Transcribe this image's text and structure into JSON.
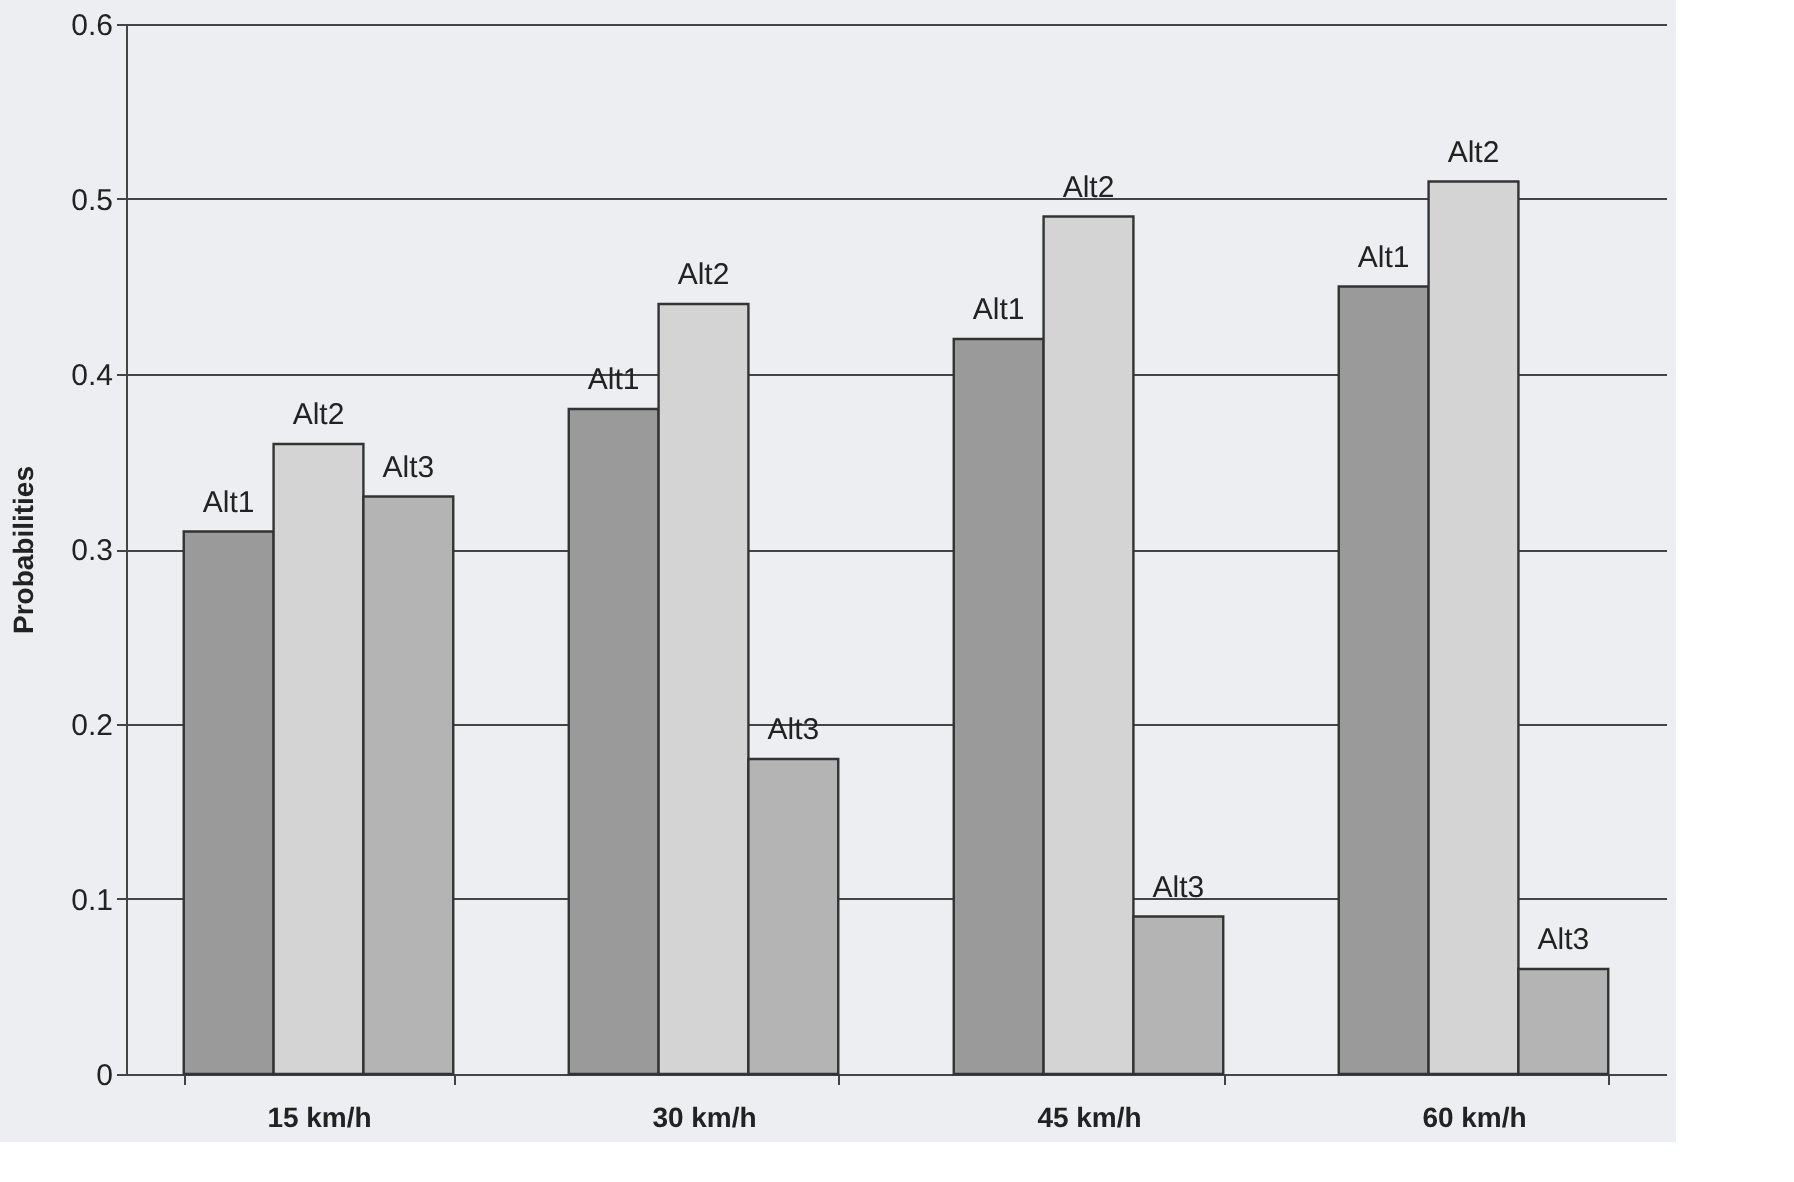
{
  "chart_data": {
    "type": "bar",
    "ylabel": "Probabilities",
    "categories": [
      "15 km/h",
      "30 km/h",
      "45 km/h",
      "60 km/h"
    ],
    "series": [
      {
        "name": "Alt1",
        "color": "#9a9a9a",
        "values": [
          0.31,
          0.38,
          0.42,
          0.45
        ]
      },
      {
        "name": "Alt2",
        "color": "#d4d4d4",
        "values": [
          0.36,
          0.44,
          0.49,
          0.51
        ]
      },
      {
        "name": "Alt3",
        "color": "#b4b4b4",
        "values": [
          0.33,
          0.18,
          0.09,
          0.06
        ]
      }
    ],
    "ylim": [
      0,
      0.6
    ],
    "yticks": [
      0,
      0.1,
      0.2,
      0.3,
      0.4,
      0.5,
      0.6
    ],
    "grid": "y",
    "legend": false
  }
}
